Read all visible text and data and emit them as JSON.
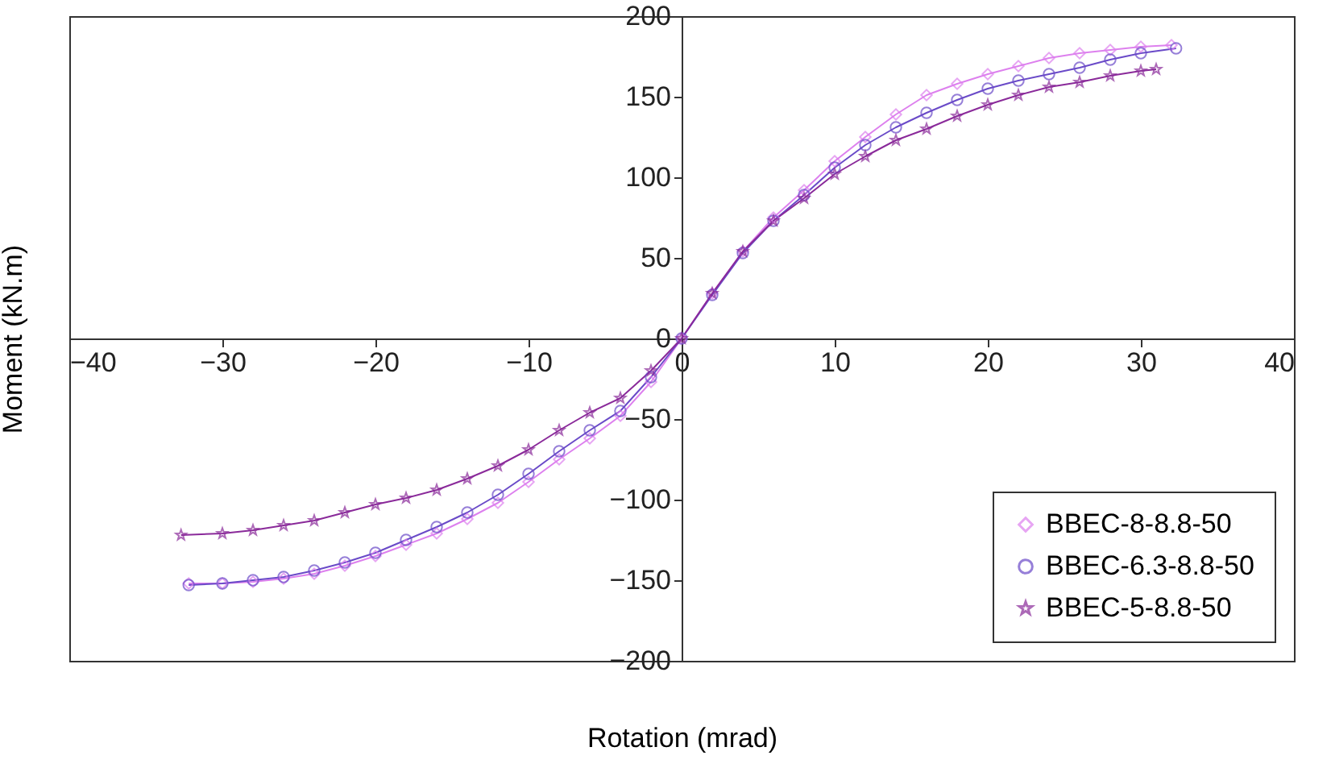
{
  "chart_data": {
    "type": "line",
    "xlabel": "Rotation (mrad)",
    "ylabel": "Moment (kN.m)",
    "xlim": [
      -40,
      40
    ],
    "ylim": [
      -200,
      200
    ],
    "xticks": [
      -40,
      -30,
      -20,
      -10,
      0,
      10,
      20,
      30,
      40
    ],
    "yticks": [
      -200,
      -150,
      -100,
      -50,
      0,
      50,
      100,
      150,
      200
    ],
    "grid": false,
    "legend": "bottom right",
    "line_style": "solid",
    "series": [
      {
        "name": "BBEC-8-8.8-50",
        "color": "#dd80ee",
        "marker": "diamond",
        "x": [
          -32.2,
          -30,
          -28,
          -26,
          -24,
          -22,
          -20,
          -18,
          -16,
          -14,
          -12,
          -10,
          -8,
          -6,
          -4,
          -2,
          0,
          2,
          4,
          6,
          8,
          10,
          12,
          14,
          16,
          18,
          20,
          22,
          24,
          26,
          28,
          30,
          32
        ],
        "values": [
          -152,
          -152,
          -151,
          -149,
          -146,
          -141,
          -135,
          -128,
          -121,
          -112,
          -102,
          -89,
          -75,
          -62,
          -48,
          -27,
          0,
          28,
          54,
          75,
          92,
          110,
          125,
          139,
          151,
          158,
          164,
          169,
          174,
          177,
          179,
          181,
          182
        ]
      },
      {
        "name": "BBEC-6.3-8.8-50",
        "color": "#6a4ac8",
        "marker": "circle",
        "x": [
          -32.2,
          -30,
          -28,
          -26,
          -24,
          -22,
          -20,
          -18,
          -16,
          -14,
          -12,
          -10,
          -8,
          -6,
          -4,
          -2,
          0,
          2,
          4,
          6,
          8,
          10,
          12,
          14,
          16,
          18,
          20,
          22,
          24,
          26,
          28,
          30,
          32.3
        ],
        "values": [
          -153,
          -152,
          -150,
          -148,
          -144,
          -139,
          -133,
          -125,
          -117,
          -108,
          -97,
          -84,
          -70,
          -57,
          -45,
          -24,
          0,
          27,
          53,
          73,
          89,
          106,
          120,
          131,
          140,
          148,
          155,
          160,
          164,
          168,
          173,
          177,
          180
        ]
      },
      {
        "name": "BBEC-5-8.8-50",
        "color": "#8a2a9a",
        "marker": "star",
        "x": [
          -32.7,
          -30,
          -28,
          -26,
          -24,
          -22,
          -20,
          -18,
          -16,
          -14,
          -12,
          -10,
          -8,
          -6,
          -4,
          -2,
          0,
          2,
          4,
          6,
          8,
          10,
          12,
          14,
          16,
          18,
          20,
          22,
          24,
          26,
          28,
          30,
          31
        ],
        "values": [
          -122,
          -121,
          -119,
          -116,
          -113,
          -108,
          -103,
          -99,
          -94,
          -87,
          -79,
          -69,
          -57,
          -46,
          -37,
          -20,
          0,
          28,
          54,
          73,
          87,
          102,
          113,
          123,
          130,
          138,
          145,
          151,
          156,
          159,
          163,
          166,
          167
        ]
      }
    ]
  }
}
